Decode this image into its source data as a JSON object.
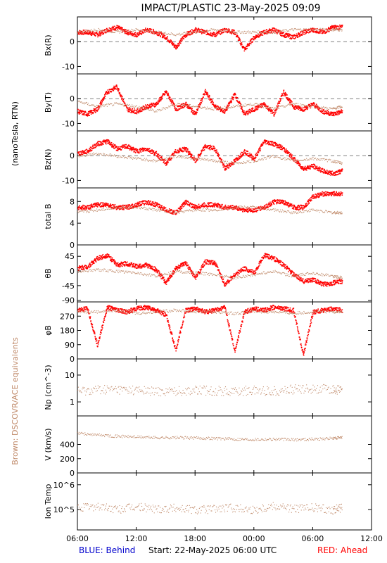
{
  "title": "IMPACT/PLASTIC   23-May-2025 09:09",
  "side_label": "(nanoTesla, RTN)",
  "side_label_brown": "Brown: DSCOVR/ACE equivalents",
  "footer": {
    "blue": "BLUE: Behind",
    "start": "Start: 22-May-2025 06:00 UTC",
    "red": "RED: Ahead"
  },
  "colors": {
    "ahead": "#ff0000",
    "behind": "#0000cc",
    "dscovr": "#c08a6a",
    "axis": "#000000",
    "zero_line": "#808080"
  },
  "x_axis": {
    "ticks": [
      "06:00",
      "12:00",
      "18:00",
      "00:00",
      "06:00",
      "12:00"
    ],
    "range_hours": [
      0,
      30
    ]
  },
  "chart_data": [
    {
      "type": "scatter",
      "id": "bx",
      "ylabel": "Bx(R)",
      "yticks": [
        "0",
        "-10"
      ],
      "ytick_values": [
        0,
        -10
      ],
      "ylim": [
        -13,
        10
      ],
      "zero_line": true,
      "series": [
        {
          "name": "Ahead",
          "x": [
            0,
            1,
            2,
            3,
            4,
            5,
            6,
            7,
            8,
            9,
            10,
            11,
            12,
            13,
            14,
            15,
            16,
            17,
            18,
            19,
            20,
            21,
            22,
            23,
            24,
            25,
            26,
            27
          ],
          "y": [
            4,
            4,
            3,
            5,
            6,
            4,
            3,
            5,
            4,
            2,
            -2,
            3,
            5,
            4,
            3,
            5,
            4,
            -3,
            2,
            4,
            5,
            3,
            2,
            4,
            5,
            4,
            6,
            6
          ]
        },
        {
          "name": "DSCOVR",
          "x": [
            0,
            2,
            4,
            6,
            8,
            10,
            12,
            14,
            16,
            18,
            20,
            22,
            24,
            26,
            27
          ],
          "y": [
            4,
            5,
            4,
            5,
            4,
            3,
            4,
            5,
            4,
            4,
            4,
            5,
            5,
            5,
            5
          ]
        }
      ]
    },
    {
      "type": "scatter",
      "id": "by",
      "ylabel": "By(T)",
      "yticks": [
        "0",
        "-10"
      ],
      "ytick_values": [
        0,
        -10
      ],
      "ylim": [
        -13,
        10
      ],
      "zero_line": true,
      "series": [
        {
          "name": "Ahead",
          "x": [
            0,
            1,
            2,
            3,
            4,
            5,
            6,
            7,
            8,
            9,
            10,
            11,
            12,
            13,
            14,
            15,
            16,
            17,
            18,
            19,
            20,
            21,
            22,
            23,
            24,
            25,
            26,
            27
          ],
          "y": [
            -5,
            -6,
            -4,
            3,
            5,
            -4,
            -5,
            -3,
            -2,
            3,
            -4,
            -2,
            -6,
            3,
            -3,
            -5,
            2,
            -6,
            -4,
            -2,
            -6,
            3,
            -3,
            -4,
            -2,
            -5,
            -6,
            -5
          ]
        },
        {
          "name": "DSCOVR",
          "x": [
            0,
            2,
            4,
            6,
            8,
            10,
            12,
            14,
            16,
            18,
            20,
            22,
            24,
            26,
            27
          ],
          "y": [
            -1,
            -3,
            -2,
            -3,
            -5,
            -2,
            -3,
            -4,
            -3,
            -2,
            -4,
            -2,
            -3,
            -4,
            -3
          ]
        }
      ]
    },
    {
      "type": "scatter",
      "id": "bz",
      "ylabel": "Bz(N)",
      "yticks": [
        "0",
        "-10"
      ],
      "ytick_values": [
        0,
        -10
      ],
      "ylim": [
        -13,
        10
      ],
      "zero_line": true,
      "series": [
        {
          "name": "Ahead",
          "x": [
            0,
            1,
            2,
            3,
            4,
            5,
            6,
            7,
            8,
            9,
            10,
            11,
            12,
            13,
            14,
            15,
            16,
            17,
            18,
            19,
            20,
            21,
            22,
            23,
            24,
            25,
            26,
            27
          ],
          "y": [
            1,
            2,
            5,
            6,
            3,
            4,
            2,
            3,
            1,
            -3,
            2,
            3,
            -2,
            4,
            3,
            -5,
            -2,
            2,
            -1,
            6,
            5,
            3,
            -1,
            -5,
            -4,
            -6,
            -7,
            -6
          ]
        },
        {
          "name": "DSCOVR",
          "x": [
            0,
            2,
            4,
            6,
            8,
            10,
            12,
            14,
            16,
            18,
            20,
            22,
            24,
            26,
            27
          ],
          "y": [
            0,
            1,
            0,
            -1,
            -2,
            0,
            -1,
            -2,
            -3,
            -2,
            0,
            -2,
            -1,
            -2,
            -3
          ]
        }
      ]
    },
    {
      "type": "scatter",
      "id": "btot",
      "ylabel": "total B",
      "yticks": [
        "8",
        "4",
        "0"
      ],
      "ytick_values": [
        8,
        4,
        0
      ],
      "ylim": [
        0,
        10.5
      ],
      "zero_line": false,
      "series": [
        {
          "name": "Ahead",
          "x": [
            0,
            1,
            2,
            3,
            4,
            5,
            6,
            7,
            8,
            9,
            10,
            11,
            12,
            13,
            14,
            15,
            16,
            17,
            18,
            19,
            20,
            21,
            22,
            23,
            24,
            25,
            26,
            27
          ],
          "y": [
            7,
            7,
            7.5,
            7.5,
            7,
            7,
            7.5,
            8,
            7.5,
            6.5,
            6,
            8,
            7,
            7.5,
            7.5,
            7,
            7,
            6.5,
            6.5,
            7,
            8,
            8,
            7,
            7,
            9,
            9.5,
            9.5,
            9.5
          ]
        },
        {
          "name": "DSCOVR",
          "x": [
            0,
            2,
            4,
            6,
            8,
            10,
            12,
            14,
            16,
            18,
            20,
            22,
            24,
            26,
            27
          ],
          "y": [
            6,
            6.5,
            7,
            7,
            6.5,
            6,
            6.5,
            6.5,
            7,
            7,
            6.5,
            6,
            6.5,
            6,
            6
          ]
        }
      ]
    },
    {
      "type": "scatter",
      "id": "theta",
      "ylabel": "θB",
      "yticks": [
        "45",
        "0",
        "-45",
        "-90"
      ],
      "ytick_values": [
        45,
        0,
        -45,
        -90
      ],
      "ylim": [
        -95,
        80
      ],
      "zero_line": false,
      "series": [
        {
          "name": "Ahead",
          "x": [
            0,
            1,
            2,
            3,
            4,
            5,
            6,
            7,
            8,
            9,
            10,
            11,
            12,
            13,
            14,
            15,
            16,
            17,
            18,
            19,
            20,
            21,
            22,
            23,
            24,
            25,
            26,
            27
          ],
          "y": [
            10,
            15,
            40,
            50,
            20,
            25,
            15,
            20,
            5,
            -35,
            10,
            25,
            -20,
            30,
            25,
            -40,
            -10,
            10,
            -5,
            50,
            40,
            20,
            -10,
            -30,
            -25,
            -40,
            -35,
            -30
          ]
        },
        {
          "name": "DSCOVR",
          "x": [
            0,
            2,
            4,
            6,
            8,
            10,
            12,
            14,
            16,
            18,
            20,
            22,
            24,
            26,
            27
          ],
          "y": [
            0,
            5,
            0,
            -5,
            -15,
            0,
            -5,
            -10,
            -20,
            -10,
            0,
            -15,
            -5,
            -15,
            -20
          ]
        }
      ]
    },
    {
      "type": "scatter",
      "id": "phi",
      "ylabel": "φB",
      "yticks": [
        "270",
        "180",
        "90",
        "0"
      ],
      "ytick_values": [
        270,
        180,
        90,
        0
      ],
      "ylim": [
        0,
        360
      ],
      "zero_line": false,
      "series": [
        {
          "name": "Ahead",
          "x": [
            0,
            1,
            2,
            3,
            4,
            5,
            6,
            7,
            8,
            9,
            10,
            11,
            12,
            13,
            14,
            15,
            16,
            17,
            18,
            19,
            20,
            21,
            22,
            23,
            24,
            25,
            26,
            27
          ],
          "y": [
            310,
            320,
            90,
            330,
            310,
            300,
            320,
            330,
            310,
            280,
            60,
            310,
            320,
            300,
            310,
            330,
            50,
            300,
            320,
            310,
            330,
            320,
            310,
            30,
            300,
            310,
            320,
            310
          ]
        },
        {
          "name": "DSCOVR",
          "x": [
            0,
            2,
            4,
            6,
            8,
            10,
            12,
            14,
            16,
            18,
            20,
            22,
            24,
            26,
            27
          ],
          "y": [
            300,
            300,
            310,
            290,
            300,
            310,
            300,
            300,
            290,
            300,
            300,
            290,
            300,
            300,
            300
          ]
        }
      ]
    },
    {
      "type": "scatter",
      "id": "np",
      "ylabel": "Np (cm^-3)",
      "scale": "log",
      "yticks": [
        "10",
        "1"
      ],
      "ytick_values": [
        10,
        1
      ],
      "ylim": [
        0.3,
        40
      ],
      "zero_line": false,
      "series": [
        {
          "name": "DSCOVR",
          "x": [
            0,
            2,
            4,
            6,
            8,
            10,
            12,
            14,
            16,
            18,
            20,
            22,
            24,
            26,
            27
          ],
          "y": [
            2.5,
            3,
            3,
            2.8,
            2.5,
            2.6,
            2.8,
            2.7,
            2.5,
            2.8,
            2.6,
            3,
            3.2,
            3,
            2.8
          ]
        }
      ]
    },
    {
      "type": "scatter",
      "id": "v",
      "ylabel": "V (km/s)",
      "yticks": [
        "400",
        "200",
        "0"
      ],
      "ytick_values": [
        400,
        200,
        0
      ],
      "ylim": [
        0,
        800
      ],
      "zero_line": false,
      "series": [
        {
          "name": "DSCOVR",
          "x": [
            0,
            2,
            4,
            6,
            8,
            10,
            12,
            14,
            16,
            18,
            20,
            22,
            24,
            26,
            27
          ],
          "y": [
            560,
            540,
            520,
            510,
            500,
            500,
            495,
            490,
            480,
            475,
            480,
            470,
            480,
            490,
            500
          ]
        }
      ]
    },
    {
      "type": "scatter",
      "id": "temp",
      "ylabel": "Ion Temp",
      "scale": "log",
      "yticks": [
        "10^6",
        "10^5"
      ],
      "ytick_values": [
        1000000,
        100000
      ],
      "ylim": [
        15000,
        3000000
      ],
      "zero_line": false,
      "series": [
        {
          "name": "DSCOVR",
          "x": [
            0,
            2,
            4,
            6,
            8,
            10,
            12,
            14,
            16,
            18,
            20,
            22,
            24,
            26,
            27
          ],
          "y": [
            120000,
            140000,
            100000,
            130000,
            110000,
            120000,
            100000,
            110000,
            120000,
            100000,
            150000,
            110000,
            120000,
            100000,
            120000
          ]
        }
      ]
    }
  ]
}
